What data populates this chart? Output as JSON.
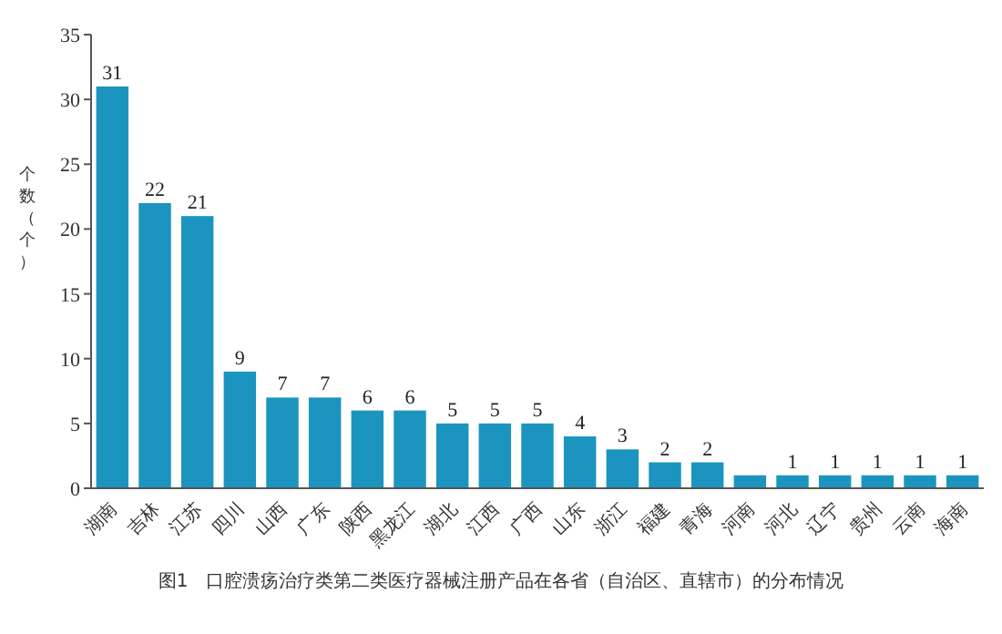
{
  "chart_data": {
    "type": "bar",
    "title": "图1　口腔溃疡治疗类第二类医疗器械注册产品在各省（自治区、直辖市）的分布情况",
    "ylabel": "个数（个）",
    "categories": [
      "湖南",
      "吉林",
      "江苏",
      "四川",
      "山西",
      "广东",
      "陕西",
      "黑龙江",
      "湖北",
      "江西",
      "广西",
      "山东",
      "浙江",
      "福建",
      "青海",
      "河南",
      "河北",
      "辽宁",
      "贵州",
      "云南",
      "海南"
    ],
    "values": [
      31,
      22,
      21,
      9,
      7,
      7,
      6,
      6,
      5,
      5,
      5,
      4,
      3,
      2,
      2,
      1,
      1,
      1,
      1,
      1,
      1
    ],
    "value_labels": [
      "31",
      "22",
      "21",
      "9",
      "7",
      "7",
      "6",
      "6",
      "5",
      "5",
      "5",
      "4",
      "3",
      "2",
      "2",
      null,
      "1",
      "1",
      "1",
      "1",
      "1"
    ],
    "color": "#1b95bf",
    "ylim": [
      0,
      35
    ],
    "yticks": [
      0,
      5,
      10,
      15,
      20,
      25,
      30,
      35
    ],
    "grid": false
  }
}
